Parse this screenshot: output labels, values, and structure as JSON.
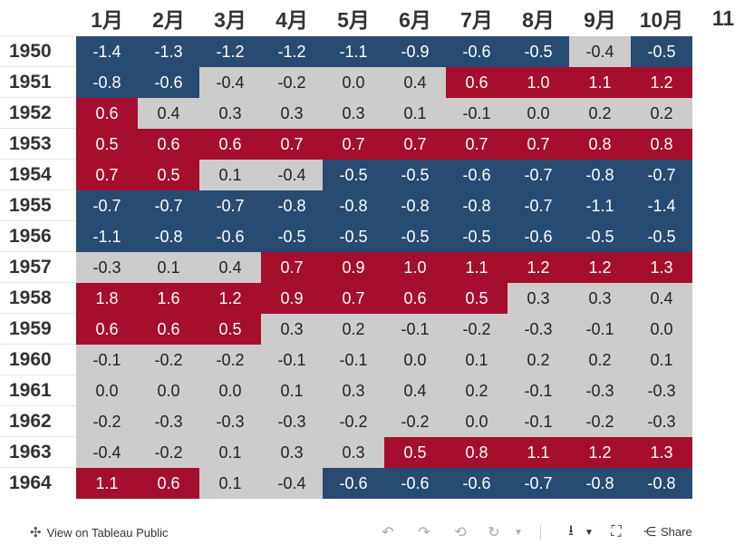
{
  "chart_data": {
    "type": "heatmap",
    "title": "",
    "columns": [
      "1月",
      "2月",
      "3月",
      "4月",
      "5月",
      "6月",
      "7月",
      "8月",
      "9月",
      "10月",
      "11"
    ],
    "rows": [
      "1950",
      "1951",
      "1952",
      "1953",
      "1954",
      "1955",
      "1956",
      "1957",
      "1958",
      "1959",
      "1960",
      "1961",
      "1962",
      "1963",
      "1964"
    ],
    "values": [
      [
        -1.4,
        -1.3,
        -1.2,
        -1.2,
        -1.1,
        -0.9,
        -0.6,
        -0.5,
        -0.4,
        -0.5,
        null
      ],
      [
        -0.8,
        -0.6,
        -0.4,
        -0.2,
        0.0,
        0.4,
        0.6,
        1.0,
        1.1,
        1.2,
        null
      ],
      [
        0.6,
        0.4,
        0.3,
        0.3,
        0.3,
        0.1,
        -0.1,
        0.0,
        0.2,
        0.2,
        null
      ],
      [
        0.5,
        0.6,
        0.6,
        0.7,
        0.7,
        0.7,
        0.7,
        0.7,
        0.8,
        0.8,
        null
      ],
      [
        0.7,
        0.5,
        0.1,
        -0.4,
        -0.5,
        -0.5,
        -0.6,
        -0.7,
        -0.8,
        -0.7,
        null
      ],
      [
        -0.7,
        -0.7,
        -0.7,
        -0.8,
        -0.8,
        -0.8,
        -0.8,
        -0.7,
        -1.1,
        -1.4,
        null
      ],
      [
        -1.1,
        -0.8,
        -0.6,
        -0.5,
        -0.5,
        -0.5,
        -0.5,
        -0.6,
        -0.5,
        -0.5,
        null
      ],
      [
        -0.3,
        0.1,
        0.4,
        0.7,
        0.9,
        1.0,
        1.1,
        1.2,
        1.2,
        1.3,
        null
      ],
      [
        1.8,
        1.6,
        1.2,
        0.9,
        0.7,
        0.6,
        0.5,
        0.3,
        0.3,
        0.4,
        null
      ],
      [
        0.6,
        0.6,
        0.5,
        0.3,
        0.2,
        -0.1,
        -0.2,
        -0.3,
        -0.1,
        0.0,
        null
      ],
      [
        -0.1,
        -0.2,
        -0.2,
        -0.1,
        -0.1,
        0.0,
        0.1,
        0.2,
        0.2,
        0.1,
        null
      ],
      [
        0.0,
        0.0,
        0.0,
        0.1,
        0.3,
        0.4,
        0.2,
        -0.1,
        -0.3,
        -0.3,
        null
      ],
      [
        -0.2,
        -0.3,
        -0.3,
        -0.3,
        -0.2,
        -0.2,
        0.0,
        -0.1,
        -0.2,
        -0.3,
        null
      ],
      [
        -0.4,
        -0.2,
        0.1,
        0.3,
        0.3,
        0.5,
        0.8,
        1.1,
        1.2,
        1.3,
        null
      ],
      [
        1.1,
        0.6,
        0.1,
        -0.4,
        -0.6,
        -0.6,
        -0.6,
        -0.7,
        -0.8,
        -0.8,
        null
      ]
    ],
    "thresholds": {
      "warm": 0.5,
      "cool": -0.5
    },
    "colors": {
      "warm": "#a50f2d",
      "cool": "#284b74",
      "neutral": "#cccccc",
      "text_light": "#ffffff",
      "text_dark": "#222222"
    }
  },
  "footer": {
    "view_link": "View on Tableau Public",
    "share_label": "Share"
  }
}
